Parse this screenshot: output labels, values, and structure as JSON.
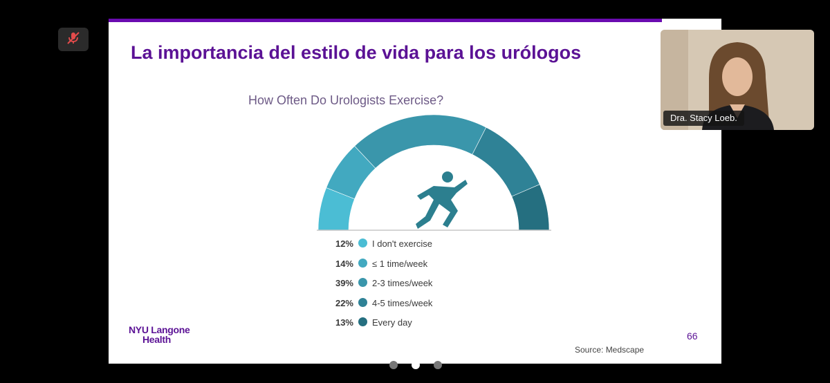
{
  "meeting": {
    "mute_icon": "muted-microphone-icon"
  },
  "slide": {
    "title": "La importancia del estilo de vida para los urólogos",
    "chart_title": "How Often Do Urologists Exercise?",
    "runner_icon": "running-person-icon",
    "logo_line1": "NYU Langone",
    "logo_line2": "Health",
    "page_number": "66",
    "source": "Source: Medscape"
  },
  "legend": [
    {
      "pct": "12%",
      "label": "I don't exercise",
      "color": "#4bbdd4"
    },
    {
      "pct": "14%",
      "label": "≤ 1 time/week",
      "color": "#42a9c0"
    },
    {
      "pct": "39%",
      "label": "2-3 times/week",
      "color": "#3a96ab"
    },
    {
      "pct": "22%",
      "label": "4-5 times/week",
      "color": "#2f8296"
    },
    {
      "pct": "13%",
      "label": "Every day",
      "color": "#256f80"
    }
  ],
  "chart_data": {
    "type": "pie",
    "title": "How Often Do Urologists Exercise?",
    "categories": [
      "I don't exercise",
      "≤ 1 time/week",
      "2-3 times/week",
      "4-5 times/week",
      "Every day"
    ],
    "values": [
      12,
      14,
      39,
      22,
      13
    ],
    "unit": "%",
    "colors": [
      "#4bbdd4",
      "#42a9c0",
      "#3a96ab",
      "#2f8296",
      "#256f80"
    ]
  },
  "participant": {
    "name": "Dra. Stacy Loeb."
  },
  "pager": {
    "count": 3,
    "active": 1
  }
}
